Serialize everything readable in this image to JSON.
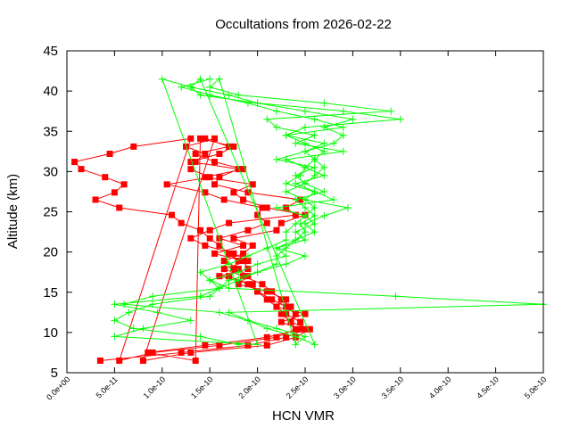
{
  "chart_data": {
    "type": "line",
    "title": "Occultations from 2026-02-22",
    "xlabel": "HCN VMR",
    "ylabel": "Altitude (km)",
    "xlim": [
      0,
      5e-10
    ],
    "ylim": [
      5,
      45
    ],
    "xticks": [
      "0.0e+00",
      "5.0e-11",
      "1.0e-10",
      "1.5e-10",
      "2.0e-10",
      "2.5e-10",
      "3.0e-10",
      "3.5e-10",
      "4.0e-10",
      "4.5e-10",
      "5.0e-10"
    ],
    "xtick_values": [
      0,
      5e-11,
      1e-10,
      1.5e-10,
      2e-10,
      2.5e-10,
      3e-10,
      3.5e-10,
      4e-10,
      4.5e-10,
      5e-10
    ],
    "yticks": [
      5,
      10,
      15,
      20,
      25,
      30,
      35,
      40,
      45
    ],
    "grid": false,
    "series": [
      {
        "color": "#ff0000",
        "marker": "square",
        "profiles": [
          {
            "altitude": [
              6.5,
              7.5,
              8.4,
              9.4,
              10.4,
              11.3,
              12.3,
              13.2,
              14.1,
              15.1,
              16.0,
              17.0,
              17.9,
              18.9,
              19.8,
              20.8,
              21.7,
              22.7,
              23.6,
              24.6,
              25.5,
              26.5,
              27.4,
              28.4,
              29.3,
              30.3,
              31.2,
              32.2,
              33.1,
              34.1
            ],
            "hcn": [
              3.5e-11,
              1.2e-10,
              1.9e-10,
              2.3e-10,
              2.5e-10,
              2.45e-10,
              2.3e-10,
              2.2e-10,
              2.1e-10,
              2e-10,
              1.9e-10,
              1.7e-10,
              1.75e-10,
              1.8e-10,
              1.7e-10,
              1.6e-10,
              1.5e-10,
              1.4e-10,
              1.2e-10,
              1.1e-10,
              5.5e-11,
              3e-11,
              5e-11,
              6e-11,
              4e-11,
              1.5e-11,
              8e-12,
              4.5e-11,
              7e-11,
              1.3e-10
            ]
          },
          {
            "altitude": [
              6.5,
              7.5,
              8.4,
              9.4,
              10.4,
              11.3,
              12.3,
              13.2,
              14.1,
              15.1,
              16.0,
              17.0,
              17.9,
              18.9,
              19.8,
              20.8,
              21.7,
              22.7,
              23.6,
              24.6,
              25.5,
              26.5,
              27.4,
              28.4,
              29.3,
              30.3,
              31.2,
              32.2,
              33.1,
              34.1
            ],
            "hcn": [
              5.5e-11,
              9e-11,
              1.6e-10,
              2.2e-10,
              2.4e-10,
              2.35e-10,
              2.4e-10,
              2.3e-10,
              2.15e-10,
              2e-10,
              1.95e-10,
              1.6e-10,
              1.9e-10,
              1.85e-10,
              1.55e-10,
              1.85e-10,
              1.6e-10,
              1.9e-10,
              2.1e-10,
              2e-10,
              2.05e-10,
              1.65e-10,
              1.45e-10,
              1.05e-10,
              1.5e-10,
              1.3e-10,
              1.35e-10,
              1.45e-10,
              1.25e-10,
              1.55e-10
            ]
          },
          {
            "altitude": [
              6.5,
              7.5,
              8.4,
              9.4,
              10.4,
              11.3,
              12.3,
              13.2,
              14.1,
              15.1,
              16.0,
              17.0,
              17.9,
              18.9,
              19.8,
              20.8,
              21.7,
              22.7,
              23.6,
              24.6,
              25.5,
              26.5,
              27.4,
              28.4,
              29.3,
              30.3,
              31.2,
              32.2,
              33.1,
              34.1
            ],
            "hcn": [
              8e-11,
              1.3e-10,
              2.1e-10,
              2.4e-10,
              2.55e-10,
              2.35e-10,
              2.25e-10,
              2.35e-10,
              2.25e-10,
              2.15e-10,
              2.05e-10,
              1.85e-10,
              1.65e-10,
              1.9e-10,
              1.75e-10,
              1.45e-10,
              1.3e-10,
              1.5e-10,
              1.7e-10,
              2.4e-10,
              2.3e-10,
              2.45e-10,
              1.9e-10,
              1.55e-10,
              1.6e-10,
              1.8e-10,
              1.3e-10,
              1.6e-10,
              1.75e-10,
              1.4e-10
            ]
          },
          {
            "altitude": [
              6.5,
              7.5,
              8.4,
              9.4,
              10.4,
              11.3,
              12.3,
              13.2,
              14.1,
              15.1,
              16.0,
              17.0,
              17.9,
              18.9,
              19.8,
              20.8,
              21.7,
              22.7,
              23.6,
              24.6,
              25.5,
              26.5,
              27.4,
              28.4,
              29.3,
              30.3,
              31.2,
              32.2,
              33.1,
              34.1
            ],
            "hcn": [
              1.35e-10,
              8.5e-11,
              1.45e-10,
              2.1e-10,
              2.45e-10,
              2.25e-10,
              2.5e-10,
              2.2e-10,
              2.3e-10,
              2.1e-10,
              1.8e-10,
              1.9e-10,
              1.8e-10,
              1.65e-10,
              1.85e-10,
              1.95e-10,
              1.75e-10,
              2.2e-10,
              2.25e-10,
              2.5e-10,
              2.1e-10,
              1.85e-10,
              1.75e-10,
              1.95e-10,
              1.45e-10,
              1.85e-10,
              1.55e-10,
              1.35e-10,
              1.7e-10,
              1.45e-10
            ]
          }
        ]
      },
      {
        "color": "#00ff00",
        "marker": "plus",
        "profiles": [
          {
            "altitude": [
              8.5,
              9.5,
              10.5,
              11.5,
              12.5,
              13.5,
              14.5,
              15.5,
              16.5,
              17.5,
              18.5,
              19.5,
              20.5,
              21.5,
              22.5,
              23.5,
              24.5,
              25.5,
              26.5,
              27.5,
              28.5,
              29.5,
              30.5,
              31.5,
              32.5,
              33.5,
              34.5,
              35.5,
              36.5,
              37.5,
              38.5,
              39.5,
              40.5,
              41.5
            ],
            "hcn": [
              1.8e-10,
              1.4e-10,
              7e-11,
              5e-11,
              6.5e-11,
              9e-11,
              1.5e-10,
              1.6e-10,
              1.5e-10,
              1.4e-10,
              1.7e-10,
              1.9e-10,
              2.1e-10,
              2.3e-10,
              2.3e-10,
              2.4e-10,
              2.5e-10,
              2.6e-10,
              2.5e-10,
              2.3e-10,
              2.5e-10,
              2.6e-10,
              2.7e-10,
              2.6e-10,
              2.5e-10,
              2.8e-10,
              2.9e-10,
              2.7e-10,
              3e-10,
              2.5e-10,
              2e-10,
              1.7e-10,
              1.3e-10,
              1e-10
            ]
          },
          {
            "altitude": [
              8.5,
              9.5,
              10.5,
              11.5,
              12.5,
              13.5,
              14.5,
              15.5,
              16.5,
              17.5,
              18.5,
              19.5,
              20.5,
              21.5,
              22.5,
              23.5,
              24.5,
              25.5,
              26.5,
              27.5,
              28.5,
              29.5,
              30.5,
              31.5,
              32.5,
              33.5,
              34.5,
              35.5,
              36.5,
              37.5,
              38.5,
              39.5,
              40.5,
              41.5
            ],
            "hcn": [
              2e-10,
              5e-11,
              8e-11,
              1.3e-10,
              9.5e-11,
              5e-11,
              1.4e-10,
              1.6e-10,
              1.8e-10,
              2e-10,
              2.2e-10,
              2.2e-10,
              2.3e-10,
              2.4e-10,
              2.5e-10,
              2.45e-10,
              2.6e-10,
              2.5e-10,
              2.4e-10,
              2.7e-10,
              2.5e-10,
              2.4e-10,
              2.6e-10,
              2.2e-10,
              2.5e-10,
              2.7e-10,
              2.3e-10,
              2.5e-10,
              3.5e-10,
              2.9e-10,
              2e-10,
              1.4e-10,
              1.3e-10,
              1.4e-10
            ]
          },
          {
            "altitude": [
              8.5,
              9.5,
              10.5,
              11.5,
              12.5,
              13.5,
              14.5,
              15.5,
              16.5,
              17.5,
              18.5,
              19.5,
              20.5,
              21.5,
              22.5,
              23.5,
              24.5,
              25.5,
              26.5,
              27.5,
              28.5,
              29.5,
              30.5,
              31.5,
              32.5,
              33.5,
              34.5,
              35.5,
              36.5,
              37.5,
              38.5,
              39.5,
              40.5,
              41.5
            ],
            "hcn": [
              2.6e-10,
              2.4e-10,
              2.1e-10,
              1.9e-10,
              1.7e-10,
              5e-10,
              3.45e-10,
              1.7e-10,
              1.5e-10,
              1.8e-10,
              2e-10,
              2.3e-10,
              2.2e-10,
              2.5e-10,
              2.4e-10,
              2.6e-10,
              2.5e-10,
              2.2e-10,
              2.8e-10,
              2.6e-10,
              2.4e-10,
              2.7e-10,
              2.5e-10,
              2.3e-10,
              2.9e-10,
              2.4e-10,
              2.6e-10,
              2.2e-10,
              2.1e-10,
              3.4e-10,
              2.7e-10,
              1.8e-10,
              1.5e-10,
              1.6e-10
            ]
          },
          {
            "altitude": [
              8.5,
              9.5,
              10.5,
              11.5,
              12.5,
              13.5,
              14.5,
              15.5,
              16.5,
              17.5,
              18.5,
              19.5,
              20.5,
              21.5,
              22.5,
              23.5,
              24.5,
              25.5,
              26.5,
              27.5,
              28.5,
              29.5,
              30.5,
              31.5,
              32.5,
              33.5,
              34.5,
              35.5,
              36.5,
              37.5,
              38.5,
              39.5,
              40.5,
              41.5
            ],
            "hcn": [
              2.4e-10,
              2.5e-10,
              2.2e-10,
              1.9e-10,
              1.6e-10,
              6e-11,
              9e-11,
              1.6e-10,
              1.7e-10,
              2e-10,
              2.3e-10,
              2.5e-10,
              2.2e-10,
              2.4e-10,
              2.6e-10,
              2.5e-10,
              2.7e-10,
              2.95e-10,
              2.5e-10,
              2.6e-10,
              2.3e-10,
              2.45e-10,
              2.5e-10,
              2.6e-10,
              2.7e-10,
              2.5e-10,
              2.3e-10,
              2.9e-10,
              2.6e-10,
              2.2e-10,
              1.9e-10,
              1.5e-10,
              1.2e-10,
              1.5e-10
            ]
          }
        ]
      }
    ]
  }
}
